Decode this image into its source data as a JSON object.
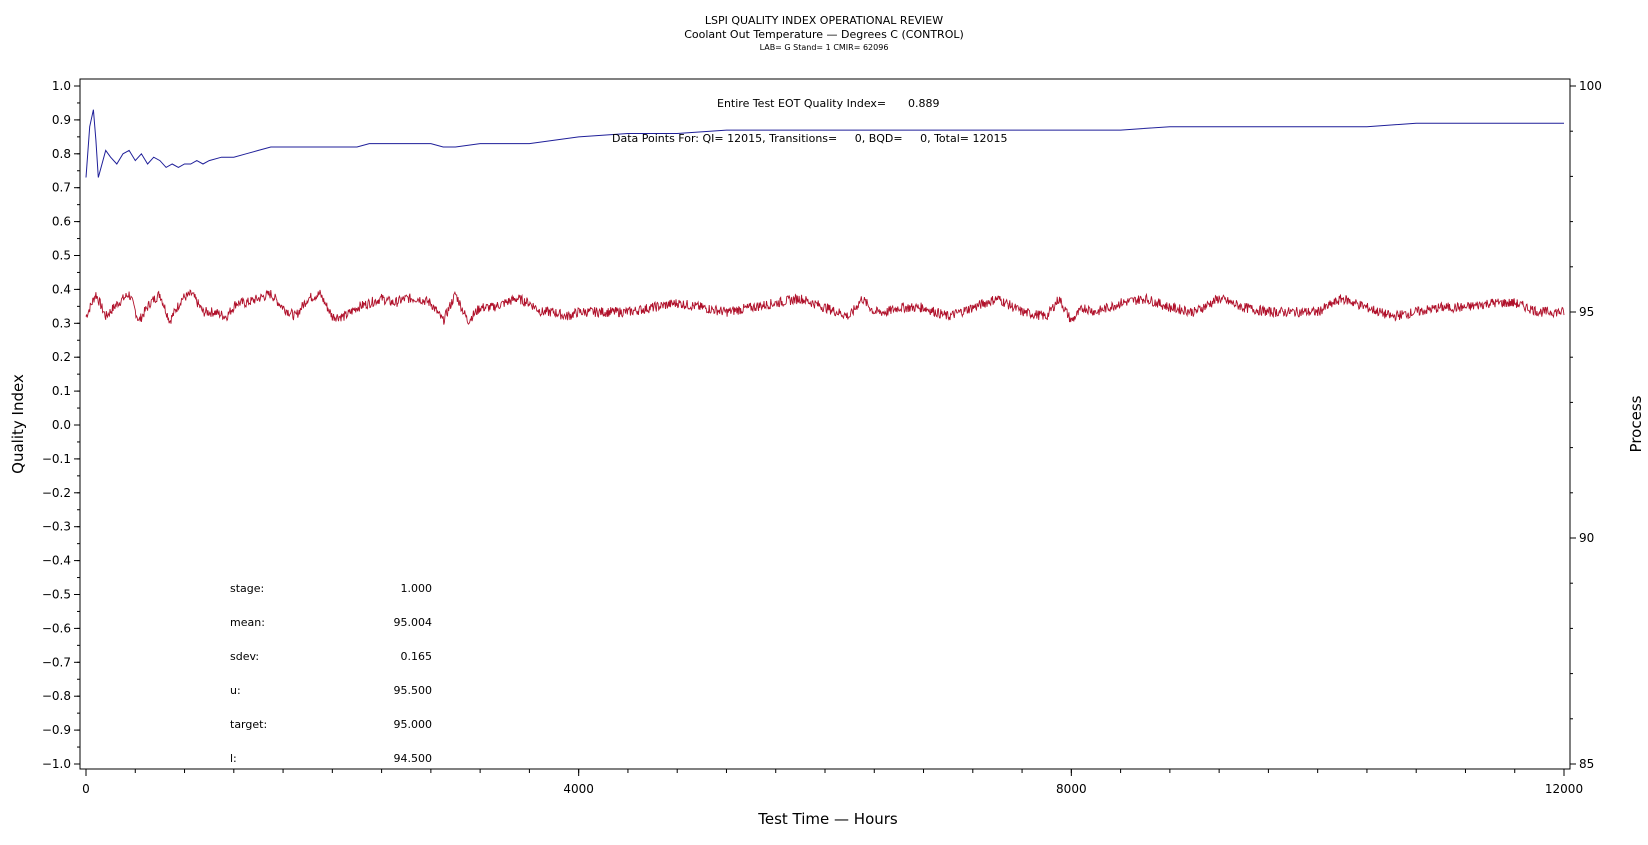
{
  "chart_data": {
    "type": "line",
    "title": "LSPI QUALITY INDEX OPERATIONAL REVIEW",
    "subtitle": "Coolant Out Temperature — Degrees C (CONTROL)",
    "sub_subtitle": "LAB= G Stand= 1 CMIR= 62096",
    "xlabel": "Test Time — Hours",
    "ylabel_left": "Quality Index",
    "ylabel_right": "Process",
    "xlim": [
      0,
      12000
    ],
    "ylim_left": [
      -1.0,
      1.0
    ],
    "ylim_right": [
      85,
      100
    ],
    "x_ticks": [
      "0",
      "4000",
      "8000",
      "12000"
    ],
    "y_left_ticks": [
      "1.0",
      "0.9",
      "0.8",
      "0.7",
      "0.6",
      "0.5",
      "0.4",
      "0.3",
      "0.2",
      "0.1",
      "0.0",
      "−0.1",
      "−0.2",
      "−0.3",
      "−0.4",
      "−0.5",
      "−0.6",
      "−0.7",
      "−0.8",
      "−0.9",
      "−1.0"
    ],
    "y_right_ticks": [
      "100",
      "95",
      "90",
      "85"
    ],
    "annotations": {
      "eot_label": "Entire Test EOT Quality Index=",
      "eot_value": "0.889",
      "points_label": "Data Points For: QI= 12015, Transitions=     0, BQD=     0, Total= 12015"
    },
    "stats": [
      {
        "label": "stage:",
        "value": "1.000"
      },
      {
        "label": "mean:",
        "value": "95.004"
      },
      {
        "label": "sdev:",
        "value": "0.165"
      },
      {
        "label": "u:",
        "value": "95.500"
      },
      {
        "label": "target:",
        "value": "95.000"
      },
      {
        "label": "l:",
        "value": "94.500"
      }
    ],
    "series": [
      {
        "axis": "left",
        "color": "#1f1f99",
        "x": [
          0,
          30,
          60,
          80,
          100,
          130,
          160,
          200,
          250,
          300,
          350,
          400,
          450,
          500,
          550,
          600,
          650,
          700,
          750,
          800,
          850,
          900,
          950,
          1000,
          1100,
          1200,
          1300,
          1400,
          1500,
          1600,
          1700,
          1800,
          1900,
          2000,
          2100,
          2200,
          2300,
          2400,
          2500,
          2600,
          2700,
          2800,
          2900,
          3000,
          3200,
          3400,
          3600,
          3800,
          4000,
          4400,
          4800,
          5200,
          5600,
          6000,
          6400,
          6800,
          7200,
          7600,
          8000,
          8400,
          8800,
          9200,
          9600,
          10000,
          10400,
          10800,
          11200,
          11600,
          12000
        ],
        "y": [
          0.73,
          0.88,
          0.93,
          0.84,
          0.73,
          0.77,
          0.81,
          0.79,
          0.77,
          0.8,
          0.81,
          0.78,
          0.8,
          0.77,
          0.79,
          0.78,
          0.76,
          0.77,
          0.76,
          0.77,
          0.77,
          0.78,
          0.77,
          0.78,
          0.79,
          0.79,
          0.8,
          0.81,
          0.82,
          0.82,
          0.82,
          0.82,
          0.82,
          0.82,
          0.82,
          0.82,
          0.83,
          0.83,
          0.83,
          0.83,
          0.83,
          0.83,
          0.82,
          0.82,
          0.83,
          0.83,
          0.83,
          0.84,
          0.85,
          0.86,
          0.86,
          0.87,
          0.87,
          0.87,
          0.87,
          0.87,
          0.87,
          0.87,
          0.87,
          0.87,
          0.88,
          0.88,
          0.88,
          0.88,
          0.88,
          0.89,
          0.89,
          0.89,
          0.89
        ]
      },
      {
        "axis": "right",
        "color": "#b0102a",
        "x": [
          0,
          80,
          160,
          260,
          350,
          430,
          520,
          600,
          680,
          780,
          860,
          950,
          1040,
          1140,
          1220,
          1300,
          1400,
          1500,
          1600,
          1700,
          1800,
          1900,
          2000,
          2100,
          2200,
          2300,
          2400,
          2500,
          2600,
          2700,
          2800,
          2900,
          3000,
          3100,
          3200,
          3300,
          3400,
          3500,
          3600,
          3700,
          3800,
          3900,
          4000,
          4200,
          4400,
          4600,
          4800,
          5000,
          5200,
          5400,
          5600,
          5800,
          6000,
          6100,
          6200,
          6300,
          6400,
          6500,
          6600,
          6800,
          7000,
          7200,
          7400,
          7600,
          7800,
          7900,
          8000,
          8100,
          8200,
          8400,
          8600,
          8800,
          9000,
          9200,
          9400,
          9600,
          9800,
          10000,
          10200,
          10400,
          10600,
          10800,
          11000,
          11200,
          11400,
          11600,
          11800,
          12000
        ],
        "y": [
          94.9,
          95.4,
          94.9,
          95.2,
          95.4,
          94.8,
          95.2,
          95.4,
          94.8,
          95.3,
          95.4,
          95.0,
          95.0,
          94.9,
          95.2,
          95.2,
          95.3,
          95.4,
          95.1,
          94.9,
          95.3,
          95.4,
          94.9,
          94.9,
          95.1,
          95.2,
          95.3,
          95.2,
          95.3,
          95.3,
          95.2,
          94.8,
          95.4,
          94.8,
          95.1,
          95.1,
          95.2,
          95.3,
          95.2,
          95.0,
          95.0,
          94.9,
          95.0,
          95.0,
          95.0,
          95.1,
          95.2,
          95.1,
          95.0,
          95.1,
          95.2,
          95.3,
          95.1,
          95.0,
          94.9,
          95.3,
          95.0,
          95.0,
          95.1,
          95.1,
          94.9,
          95.1,
          95.3,
          95.0,
          94.9,
          95.3,
          94.8,
          95.1,
          95.0,
          95.2,
          95.3,
          95.1,
          95.0,
          95.3,
          95.1,
          95.0,
          95.0,
          95.0,
          95.3,
          95.1,
          94.9,
          95.0,
          95.1,
          95.1,
          95.2,
          95.2,
          95.0,
          95.0
        ]
      }
    ]
  }
}
